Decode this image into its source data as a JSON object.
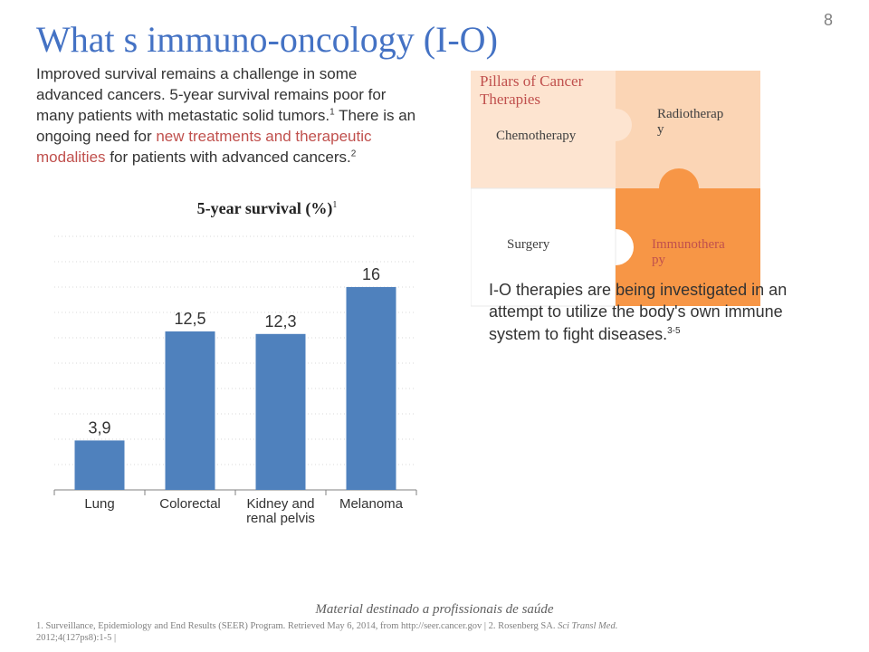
{
  "page_number": "8",
  "title": "What s immuno-oncology (I-O)",
  "body_p1a": "Improved survival remains a challenge in some advanced cancers. 5-year survival remains poor for many patients with metastatic solid tumors.",
  "body_p1_sup": "1",
  "body_p2a": "There is an ongoing need for ",
  "body_p2_hl": "new treatments and therapeutic modalities",
  "body_p2b": " for patients with advanced cancers.",
  "body_p2_sup": "2",
  "pillars": {
    "title_l1": "Pillars of Cancer",
    "title_l2": "Therapies",
    "chemo": "Chemotherapy",
    "radio_l1": "Radiotherap",
    "radio_l2": "y",
    "surgery": "Surgery",
    "immuno_l1": "Immunothera",
    "immuno_l2": "py"
  },
  "chart": {
    "title": "5-year survival (%)",
    "title_sup": "1",
    "categories": [
      "Lung",
      "Colorectal",
      "Kidney and\nrenal pelvis",
      "Melanoma"
    ],
    "values": [
      3.9,
      12.5,
      12.3,
      16
    ],
    "labels": [
      "3,9",
      "12,5",
      "12,3",
      "16"
    ],
    "bar_color": "#4f81bd",
    "grid_color": "#d9d9d9",
    "axis_color": "#808080",
    "ymax": 20,
    "tick_step": 2
  },
  "io_text_a": "I-O therapies are being investigated in an attempt to utilize the body's own immune system to fight diseases.",
  "io_text_sup": "3-5",
  "footer_note": "Material destinado a profissionais de saúde",
  "refs_l1": "1. Surveillance, Epidemiology and End Results (SEER) Program. Retrieved May 6, 2014, from http://seer.cancer.gov | 2. Rosenberg SA. ",
  "refs_em": "Sci Transl Med.",
  "refs_l2": "2012;4(127ps8):1-5 |"
}
